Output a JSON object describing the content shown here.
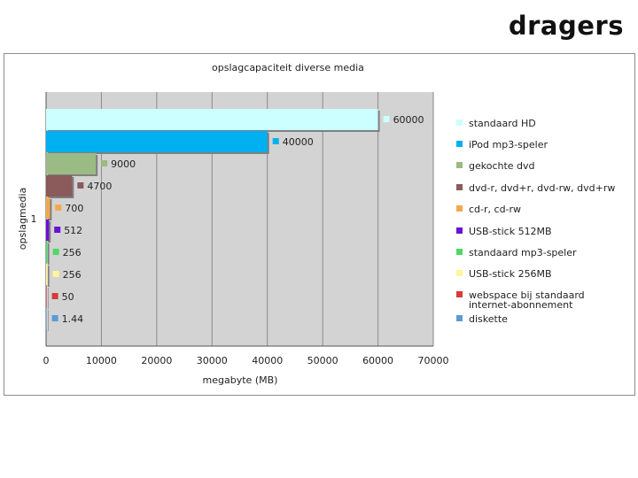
{
  "slide": {
    "title": "dragers"
  },
  "chart_data": {
    "type": "bar",
    "orientation": "horizontal",
    "title": "opslagcapaciteit diverse media",
    "xlabel": "megabyte (MB)",
    "ylabel": "opslagmedia",
    "category_tick": "1",
    "xlim": [
      0,
      70000
    ],
    "xticks": [
      "0",
      "10000",
      "20000",
      "30000",
      "40000",
      "50000",
      "60000",
      "70000"
    ],
    "grid": true,
    "legend_position": "right",
    "series": [
      {
        "name": "standaard HD",
        "value": 60000,
        "label": "60000",
        "color": "#ccffff"
      },
      {
        "name": "iPod mp3-speler",
        "value": 40000,
        "label": "40000",
        "color": "#00b0f0"
      },
      {
        "name": "gekochte dvd",
        "value": 9000,
        "label": "9000",
        "color": "#9bbb84"
      },
      {
        "name": "dvd-r, dvd+r, dvd-rw, dvd+rw",
        "value": 4700,
        "label": "4700",
        "color": "#8b5a5a"
      },
      {
        "name": "cd-r, cd-rw",
        "value": 700,
        "label": "700",
        "color": "#f4a84b"
      },
      {
        "name": "USB-stick 512MB",
        "value": 512,
        "label": "512",
        "color": "#6a0fd6"
      },
      {
        "name": "standaard mp3-speler",
        "value": 256,
        "label": "256",
        "color": "#4cd964"
      },
      {
        "name": "USB-stick 256MB",
        "value": 256,
        "label": "256",
        "color": "#fff59a"
      },
      {
        "name": "webspace bij standaard internet-abonnement",
        "value": 50,
        "label": "50",
        "color": "#d63a3a"
      },
      {
        "name": "diskette",
        "value": 1.44,
        "label": "1.44",
        "color": "#5b9bd5"
      }
    ]
  }
}
